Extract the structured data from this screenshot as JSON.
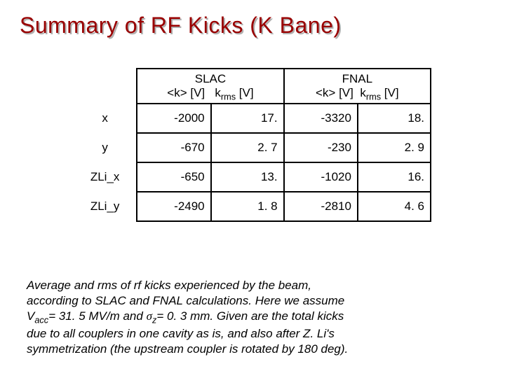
{
  "title": "Summary of RF Kicks (K Bane)",
  "headers": {
    "slac": "SLAC",
    "fnal": "FNAL",
    "k_avg": "<k> [V]",
    "k_rms_pre": "k",
    "k_rms_sub": "rms",
    "k_rms_post": " [V]"
  },
  "rows": [
    {
      "label": "x",
      "c1": "-2000",
      "c2": "17.",
      "c3": "-3320",
      "c4": "18."
    },
    {
      "label": "y",
      "c1": "-670",
      "c2": "2. 7",
      "c3": "-230",
      "c4": "2. 9"
    },
    {
      "label": "ZLi_x",
      "c1": "-650",
      "c2": "13.",
      "c3": "-1020",
      "c4": "16."
    },
    {
      "label": "ZLi_y",
      "c1": "-2490",
      "c2": "1. 8",
      "c3": "-2810",
      "c4": "4. 6"
    }
  ],
  "caption": {
    "l1": "Average and rms of rf kicks experienced by the beam,",
    "l2": "according to SLAC and FNAL calculations. Here we assume",
    "l3a": "V",
    "l3a_sub": "acc",
    "l3b": "= 31. 5 MV/m and ",
    "l3c": "σ",
    "l3c_sub": "z",
    "l3d": "= 0. 3 mm. Given are the total kicks",
    "l4": "due to all couplers in one cavity as is, and also after Z. Li's",
    "l5": "symmetrization (the upstream coupler is rotated by 180 deg)."
  },
  "colors": {
    "title": "#990000",
    "shadow": "#b0b0b0",
    "text": "#000000",
    "border": "#000000",
    "bg": "#ffffff"
  }
}
